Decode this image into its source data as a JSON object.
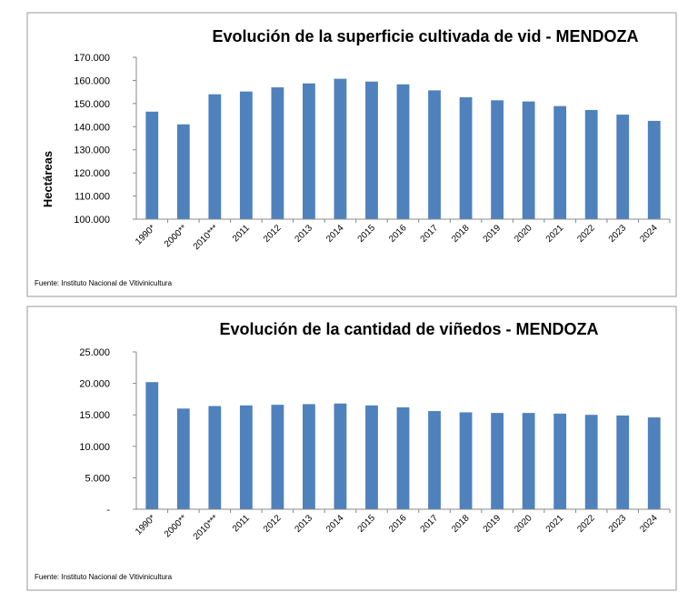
{
  "chart_data": [
    {
      "type": "bar",
      "title": "Evolución de la superficie cultivada de vid - MENDOZA",
      "xlabel": "",
      "ylabel": "Hectáreas",
      "categories": [
        "1990*",
        "2000**",
        "2010***",
        "2011",
        "2012",
        "2013",
        "2014",
        "2015",
        "2016",
        "2017",
        "2018",
        "2019",
        "2020",
        "2021",
        "2022",
        "2023",
        "2024"
      ],
      "values": [
        146500,
        141000,
        154000,
        155200,
        157000,
        158700,
        160700,
        159500,
        158300,
        155700,
        152700,
        151400,
        150900,
        148900,
        147200,
        145200,
        142500
      ],
      "ylim": [
        100000,
        170000
      ],
      "yticks": [
        "100.000",
        "110.000",
        "120.000",
        "130.000",
        "140.000",
        "150.000",
        "160.000",
        "170.000"
      ],
      "bar_color": "#4F81BD",
      "grid": false,
      "source": "Fuente: Instituto Nacional de Vitivinicultura"
    },
    {
      "type": "bar",
      "title": "Evolución de la cantidad de viñedos - MENDOZA",
      "xlabel": "",
      "ylabel": "",
      "categories": [
        "1990*",
        "2000**",
        "2010***",
        "2011",
        "2012",
        "2013",
        "2014",
        "2015",
        "2016",
        "2017",
        "2018",
        "2019",
        "2020",
        "2021",
        "2022",
        "2023",
        "2024"
      ],
      "values": [
        20200,
        16000,
        16400,
        16500,
        16600,
        16700,
        16800,
        16500,
        16200,
        15600,
        15400,
        15300,
        15300,
        15200,
        15000,
        14900,
        14600
      ],
      "ylim": [
        0,
        25000
      ],
      "yticks": [
        "-",
        "5.000",
        "10.000",
        "15.000",
        "20.000",
        "25.000"
      ],
      "bar_color": "#4F81BD",
      "grid": false,
      "source": "Fuente: Instituto Nacional de Vitivinicultura"
    }
  ]
}
